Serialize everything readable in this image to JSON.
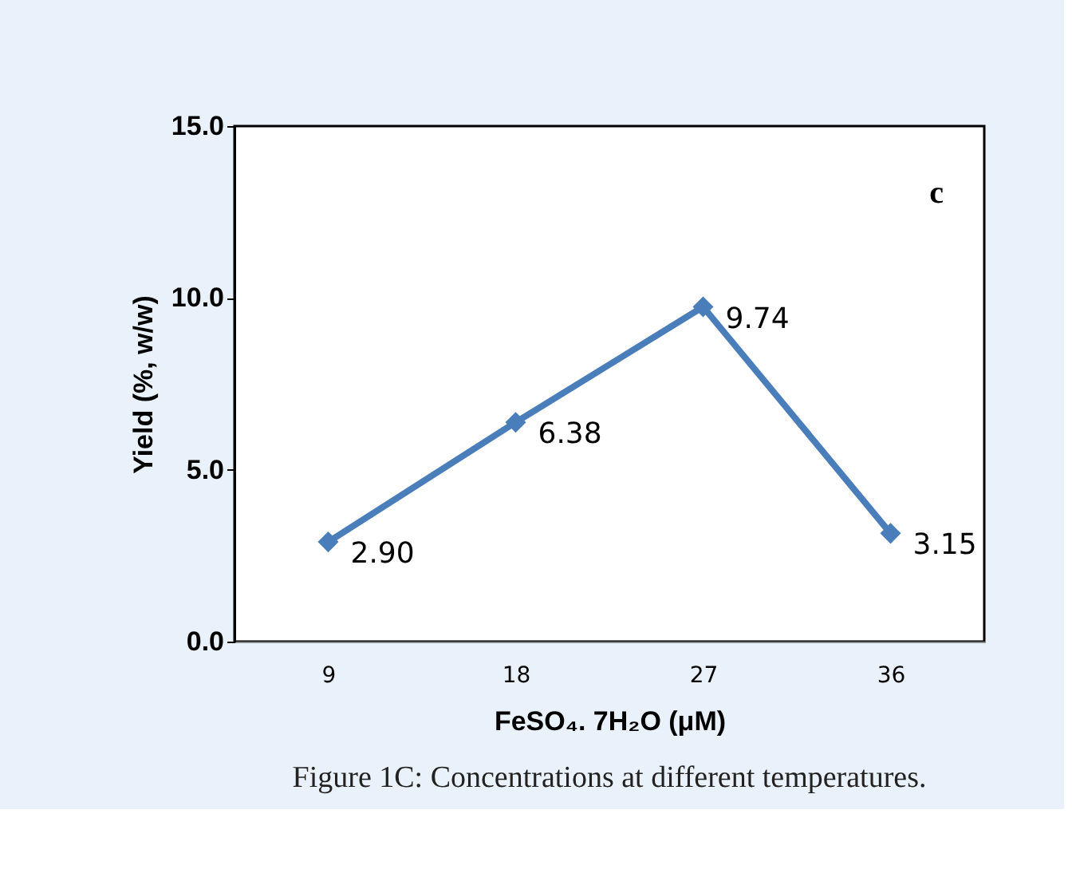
{
  "chart_data": {
    "type": "line",
    "categories": [
      "9",
      "18",
      "27",
      "36"
    ],
    "series": [
      {
        "color": "#4a7ebb",
        "values": [
          2.9,
          6.38,
          9.74,
          3.15
        ],
        "value_labels": [
          "2.90",
          "6.38",
          "9.74",
          "3.15"
        ]
      }
    ],
    "xlabel": "FeSO₄. 7H₂O (μM)",
    "ylabel": "Yield (%, w/w)",
    "ylim": [
      0,
      15
    ],
    "yticks": [
      {
        "value": 0,
        "label": "0.0"
      },
      {
        "value": 5,
        "label": "5.0"
      },
      {
        "value": 10,
        "label": "10.0"
      },
      {
        "value": 15,
        "label": "15.0"
      }
    ],
    "marker": "diamond",
    "line_style": "solid",
    "grid": false,
    "legend": false,
    "annotations": [
      "c",
      "Figure 1C: Concentrations at different temperatures."
    ]
  }
}
